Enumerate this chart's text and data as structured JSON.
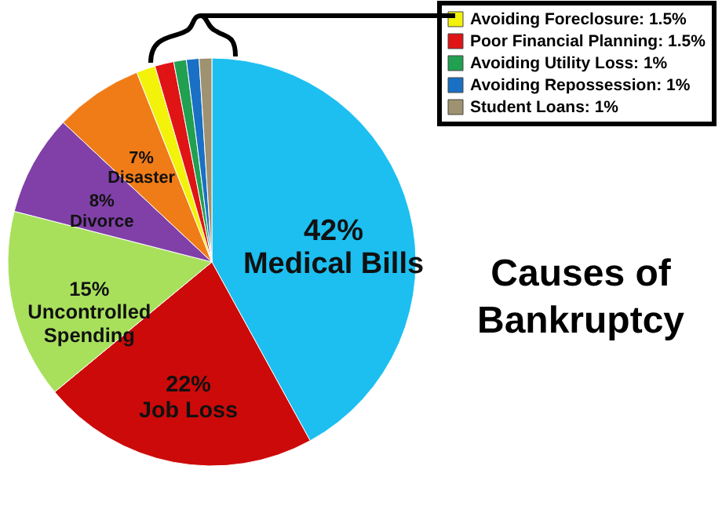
{
  "chart_data": {
    "type": "pie",
    "title": "Causes of Bankruptcy",
    "categories": [
      "Medical Bills",
      "Job Loss",
      "Uncontrolled Spending",
      "Divorce",
      "Disaster",
      "Avoiding Foreclosure",
      "Poor Financial Planning",
      "Avoiding Utility Loss",
      "Avoiding Repossession",
      "Student Loans"
    ],
    "values": [
      42,
      22,
      15,
      8,
      7,
      1.5,
      1.5,
      1,
      1,
      1
    ],
    "colors": [
      "#1cbff0",
      "#cc0a0a",
      "#a8e05c",
      "#8040a8",
      "#f07c18",
      "#f2f20a",
      "#e01414",
      "#20a050",
      "#1a70c4",
      "#9e9270"
    ],
    "value_labels": [
      "42%",
      "22%",
      "15%",
      "8%",
      "7%",
      "1.5%",
      "1.5%",
      "1%",
      "1%",
      "1%"
    ],
    "legend": "top right"
  }
}
